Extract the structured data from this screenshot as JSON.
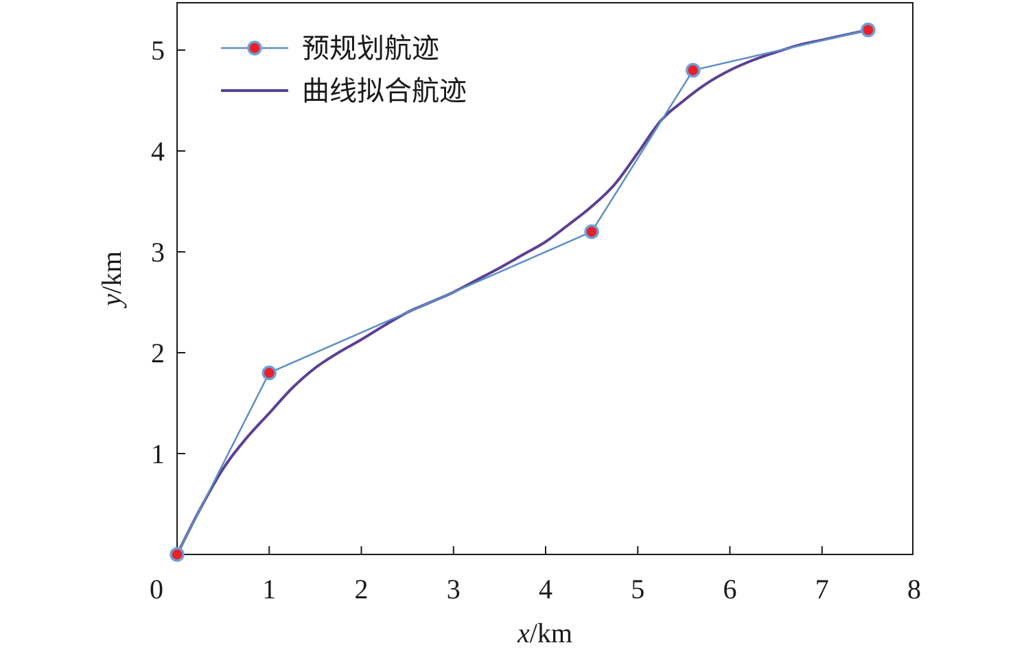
{
  "chart_data": {
    "type": "line",
    "xlabel": "x/km",
    "ylabel": "y/km",
    "xlim": [
      0,
      8
    ],
    "ylim": [
      0,
      5.5
    ],
    "xticks": [
      "0",
      "1",
      "2",
      "3",
      "4",
      "5",
      "6",
      "7",
      "8"
    ],
    "yticks": [
      "1",
      "2",
      "3",
      "4",
      "5"
    ],
    "xtick_values": [
      0,
      1,
      2,
      3,
      4,
      5,
      6,
      7,
      8
    ],
    "ytick_values": [
      1,
      2,
      3,
      4,
      5
    ],
    "grid": false,
    "legend_position": "top-left",
    "series": [
      {
        "name": "预规划航迹",
        "color": "#5b8fc7",
        "marker_fill": "#e8202a",
        "marker_edge": "#6f9fd6",
        "x": [
          0,
          1.0,
          4.5,
          5.6,
          7.5
        ],
        "y": [
          0,
          1.8,
          3.2,
          4.8,
          5.2
        ]
      },
      {
        "name": "曲线拟合航迹",
        "color": "#5b3f96",
        "x": [
          0,
          0.25,
          0.5,
          0.75,
          1.0,
          1.25,
          1.5,
          1.75,
          2.0,
          2.25,
          2.5,
          2.75,
          3.0,
          3.25,
          3.5,
          3.75,
          4.0,
          4.25,
          4.5,
          4.75,
          5.0,
          5.25,
          5.5,
          5.75,
          6.0,
          6.25,
          6.5,
          6.75,
          7.0,
          7.25,
          7.5
        ],
        "y": [
          0,
          0.45,
          0.85,
          1.15,
          1.4,
          1.65,
          1.85,
          2.0,
          2.13,
          2.27,
          2.4,
          2.5,
          2.6,
          2.72,
          2.84,
          2.97,
          3.1,
          3.27,
          3.45,
          3.67,
          3.98,
          4.3,
          4.5,
          4.67,
          4.8,
          4.9,
          4.98,
          5.05,
          5.1,
          5.15,
          5.2
        ]
      }
    ]
  }
}
